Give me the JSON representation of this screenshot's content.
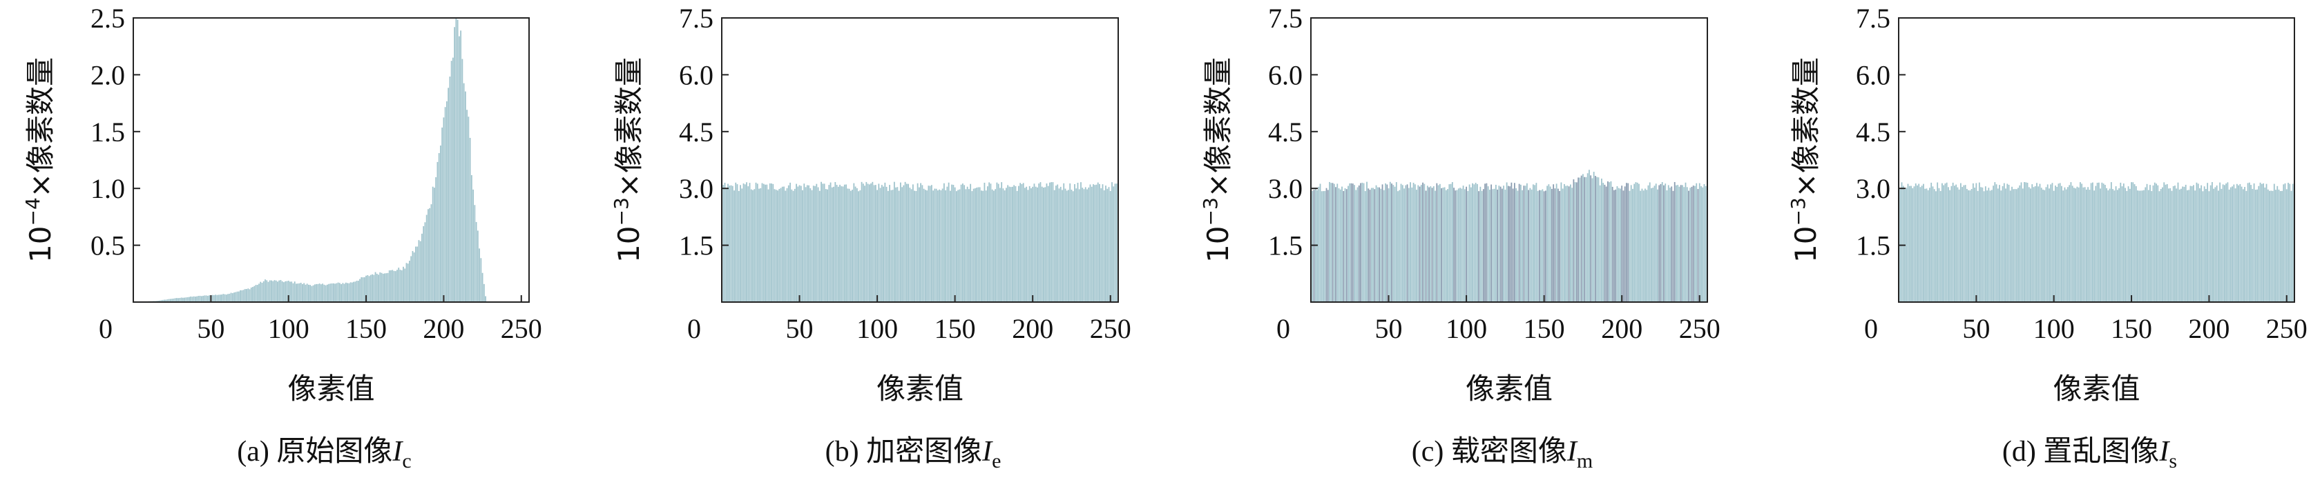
{
  "colors": {
    "bar": "#9fc3cc",
    "bar_dark": "#8a9cb0",
    "axis": "#222222",
    "text": "#111111"
  },
  "chart_data": [
    {
      "id": "a",
      "type": "bar",
      "caption_prefix": "(a)",
      "caption_text": "原始图像",
      "caption_symbol": "I",
      "caption_sub": "c",
      "xlabel": "像素值",
      "ylabel_prefix": "10",
      "ylabel_exp": "−4",
      "ylabel_rest": "×像素数量",
      "xlim": [
        0,
        255
      ],
      "ylim": [
        0,
        2.5
      ],
      "xticks": [
        0,
        50,
        100,
        150,
        200,
        250
      ],
      "xtick_labels": [
        "0",
        "50",
        "100",
        "150",
        "200",
        "250"
      ],
      "yticks": [
        0.5,
        1.0,
        1.5,
        2.0,
        2.5
      ],
      "ytick_labels": [
        "0.5",
        "1.0",
        "1.5",
        "2.0",
        "2.5"
      ],
      "bin_width": 1,
      "profile": [
        [
          0,
          0
        ],
        [
          15,
          0.01
        ],
        [
          25,
          0.03
        ],
        [
          40,
          0.05
        ],
        [
          60,
          0.07
        ],
        [
          75,
          0.12
        ],
        [
          85,
          0.19
        ],
        [
          100,
          0.18
        ],
        [
          115,
          0.15
        ],
        [
          140,
          0.17
        ],
        [
          155,
          0.25
        ],
        [
          165,
          0.27
        ],
        [
          175,
          0.3
        ],
        [
          185,
          0.55
        ],
        [
          192,
          0.9
        ],
        [
          198,
          1.4
        ],
        [
          203,
          1.9
        ],
        [
          207,
          2.3
        ],
        [
          209,
          2.45
        ],
        [
          212,
          2.2
        ],
        [
          216,
          1.55
        ],
        [
          219,
          1.0
        ],
        [
          222,
          0.6
        ],
        [
          225,
          0.25
        ],
        [
          227,
          0.05
        ],
        [
          228,
          0
        ]
      ]
    },
    {
      "id": "b",
      "type": "bar",
      "caption_prefix": "(b)",
      "caption_text": "加密图像",
      "caption_symbol": "I",
      "caption_sub": "e",
      "xlabel": "像素值",
      "ylabel_prefix": "10",
      "ylabel_exp": "−3",
      "ylabel_rest": "×像素数量",
      "xlim": [
        0,
        255
      ],
      "ylim": [
        0,
        7.5
      ],
      "xticks": [
        0,
        50,
        100,
        150,
        200,
        250
      ],
      "xtick_labels": [
        "0",
        "50",
        "100",
        "150",
        "200",
        "250"
      ],
      "yticks": [
        1.5,
        3.0,
        4.5,
        6.0,
        7.5
      ],
      "ytick_labels": [
        "1.5",
        "3.0",
        "4.5",
        "6.0",
        "7.5"
      ],
      "bin_width": 1,
      "profile": [
        [
          0,
          3.05
        ],
        [
          255,
          3.05
        ]
      ]
    },
    {
      "id": "c",
      "type": "bar",
      "caption_prefix": "(c)",
      "caption_text": "载密图像",
      "caption_symbol": "I",
      "caption_sub": "m",
      "xlabel": "像素值",
      "ylabel_prefix": "10",
      "ylabel_exp": "−3",
      "ylabel_rest": "×像素数量",
      "xlim": [
        0,
        255
      ],
      "ylim": [
        0,
        7.5
      ],
      "xticks": [
        0,
        50,
        100,
        150,
        200,
        250
      ],
      "xtick_labels": [
        "0",
        "50",
        "100",
        "150",
        "200",
        "250"
      ],
      "yticks": [
        1.5,
        3.0,
        4.5,
        6.0,
        7.5
      ],
      "ytick_labels": [
        "1.5",
        "3.0",
        "4.5",
        "6.0",
        "7.5"
      ],
      "bin_width": 1,
      "profile": [
        [
          0,
          3.05
        ],
        [
          160,
          3.05
        ],
        [
          170,
          3.15
        ],
        [
          178,
          3.45
        ],
        [
          186,
          3.2
        ],
        [
          195,
          3.05
        ],
        [
          255,
          3.05
        ]
      ]
    },
    {
      "id": "d",
      "type": "bar",
      "caption_prefix": "(d)",
      "caption_text": "置乱图像",
      "caption_symbol": "I",
      "caption_sub": "s",
      "xlabel": "像素值",
      "ylabel_prefix": "10",
      "ylabel_exp": "−3",
      "ylabel_rest": "×像素数量",
      "xlim": [
        0,
        255
      ],
      "ylim": [
        0,
        7.5
      ],
      "xticks": [
        0,
        50,
        100,
        150,
        200,
        250
      ],
      "xtick_labels": [
        "0",
        "50",
        "100",
        "150",
        "200",
        "250"
      ],
      "yticks": [
        1.5,
        3.0,
        4.5,
        6.0,
        7.5
      ],
      "ytick_labels": [
        "1.5",
        "3.0",
        "4.5",
        "6.0",
        "7.5"
      ],
      "bin_width": 1,
      "profile": [
        [
          0,
          3.05
        ],
        [
          255,
          3.05
        ]
      ]
    }
  ]
}
